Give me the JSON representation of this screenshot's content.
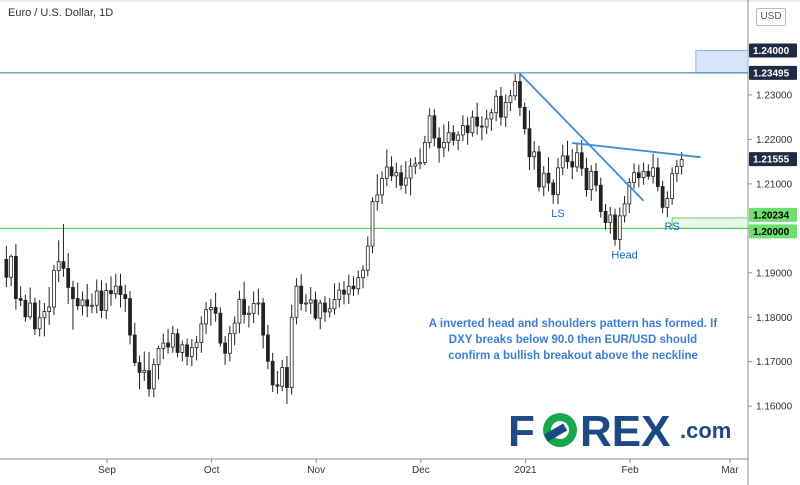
{
  "header": {
    "title": "Euro / U.S. Dollar, 1D",
    "currency": "USD"
  },
  "annotation": "A inverted head and shoulders pattern has formed. If DXY breaks below 90.0 then EUR/USD should confirm a bullish breakout above the neckline",
  "logo": {
    "text_left": "F",
    "text_right": "REX",
    "suffix": ".com",
    "color_blue": "#1d4a84",
    "color_green": "#19a84b"
  },
  "colors": {
    "candle": "#222222",
    "trend": "#3a8fd6",
    "resistance": "#2a7b90",
    "support": "#3fcf3f",
    "zone": "#d8e4fa"
  },
  "chart_data": {
    "type": "candlestick",
    "title": "Euro / U.S. Dollar, 1D",
    "ylim": [
      1.1497,
      1.2455
    ],
    "y_ticks": [
      "1.16000",
      "1.17000",
      "1.18000",
      "1.19000",
      "1.20000",
      "1.21000",
      "1.22000",
      "1.23000"
    ],
    "x_ticks": [
      "Sep",
      "Oct",
      "Nov",
      "Dec",
      "2021",
      "Feb",
      "Mar"
    ],
    "price_tags": [
      {
        "label": "1.24000",
        "value": 1.24,
        "style": "dark"
      },
      {
        "label": "1.23495",
        "value": 1.23495,
        "style": "dark"
      },
      {
        "label": "1.21555",
        "value": 1.21555,
        "style": "dark"
      },
      {
        "label": "1.20234",
        "value": 1.20234,
        "style": "green"
      },
      {
        "label": "1.20000",
        "value": 1.2,
        "style": "green"
      }
    ],
    "levels": [
      {
        "value": 1.23495,
        "kind": "resistance"
      },
      {
        "value": 1.2,
        "kind": "support"
      }
    ],
    "zones": [
      {
        "from": 1.23495,
        "to": 1.24,
        "start_index": 145
      },
      {
        "from": 1.2,
        "to": 1.20234,
        "start_index": 140
      }
    ],
    "trendlines": [
      {
        "from": {
          "index": 108,
          "value": 1.2348
        },
        "to": {
          "index": 134,
          "value": 1.2062
        }
      },
      {
        "from": {
          "index": 119,
          "value": 1.2192
        },
        "to": {
          "index": 146,
          "value": 1.216
        }
      }
    ],
    "pattern_labels": [
      {
        "text": "LS",
        "index": 116,
        "value": 1.2026
      },
      {
        "text": "Head",
        "index": 130,
        "value": 1.1932
      },
      {
        "text": "RS",
        "index": 140,
        "value": 1.1996
      }
    ],
    "candles": [
      [
        1.193,
        1.1961,
        1.1868,
        1.189
      ],
      [
        1.189,
        1.1941,
        1.187,
        1.1937
      ],
      [
        1.1937,
        1.1965,
        1.1817,
        1.1842
      ],
      [
        1.1842,
        1.187,
        1.1825,
        1.1838
      ],
      [
        1.1838,
        1.1851,
        1.179,
        1.1801
      ],
      [
        1.1801,
        1.1867,
        1.1795,
        1.1832
      ],
      [
        1.1832,
        1.1844,
        1.176,
        1.1774
      ],
      [
        1.1774,
        1.1839,
        1.1757,
        1.1799
      ],
      [
        1.1799,
        1.1832,
        1.1757,
        1.1813
      ],
      [
        1.1813,
        1.1868,
        1.1783,
        1.1823
      ],
      [
        1.1823,
        1.1918,
        1.1805,
        1.1905
      ],
      [
        1.1905,
        1.1973,
        1.1879,
        1.1925
      ],
      [
        1.1925,
        1.201,
        1.1891,
        1.191
      ],
      [
        1.191,
        1.1944,
        1.183,
        1.1867
      ],
      [
        1.1867,
        1.1882,
        1.1772,
        1.1842
      ],
      [
        1.1842,
        1.1878,
        1.1816,
        1.1826
      ],
      [
        1.1826,
        1.1858,
        1.1804,
        1.1839
      ],
      [
        1.1839,
        1.1875,
        1.18,
        1.1825
      ],
      [
        1.1825,
        1.1853,
        1.1809,
        1.1827
      ],
      [
        1.1827,
        1.1885,
        1.1809,
        1.1859
      ],
      [
        1.1859,
        1.1883,
        1.1798,
        1.1815
      ],
      [
        1.1815,
        1.1877,
        1.1796,
        1.186
      ],
      [
        1.186,
        1.1892,
        1.1826,
        1.1853
      ],
      [
        1.1853,
        1.1898,
        1.1842,
        1.187
      ],
      [
        1.187,
        1.1898,
        1.1822,
        1.1851
      ],
      [
        1.1851,
        1.1873,
        1.1812,
        1.1842
      ],
      [
        1.1842,
        1.1859,
        1.1739,
        1.176
      ],
      [
        1.176,
        1.1788,
        1.169,
        1.1698
      ],
      [
        1.1698,
        1.1714,
        1.1638,
        1.1676
      ],
      [
        1.1676,
        1.1723,
        1.1657,
        1.168
      ],
      [
        1.168,
        1.1722,
        1.1621,
        1.1639
      ],
      [
        1.1639,
        1.1707,
        1.162,
        1.1694
      ],
      [
        1.1694,
        1.1736,
        1.166,
        1.173
      ],
      [
        1.173,
        1.1763,
        1.1706,
        1.1742
      ],
      [
        1.1742,
        1.1774,
        1.1718,
        1.1733
      ],
      [
        1.1733,
        1.1781,
        1.172,
        1.1763
      ],
      [
        1.1763,
        1.1774,
        1.171,
        1.1721
      ],
      [
        1.1721,
        1.1748,
        1.1701,
        1.1738
      ],
      [
        1.1738,
        1.1752,
        1.1692,
        1.1712
      ],
      [
        1.1712,
        1.1751,
        1.169,
        1.1732
      ],
      [
        1.1732,
        1.1758,
        1.1703,
        1.1743
      ],
      [
        1.1743,
        1.1802,
        1.172,
        1.1785
      ],
      [
        1.1785,
        1.1834,
        1.1762,
        1.1817
      ],
      [
        1.1817,
        1.1841,
        1.1781,
        1.1822
      ],
      [
        1.1822,
        1.1855,
        1.179,
        1.1809
      ],
      [
        1.1809,
        1.1822,
        1.1734,
        1.1742
      ],
      [
        1.1742,
        1.1758,
        1.1693,
        1.1719
      ],
      [
        1.1719,
        1.1781,
        1.1701,
        1.1763
      ],
      [
        1.1763,
        1.1802,
        1.1737,
        1.1787
      ],
      [
        1.1787,
        1.186,
        1.1764,
        1.184
      ],
      [
        1.184,
        1.188,
        1.1786,
        1.1806
      ],
      [
        1.1806,
        1.1826,
        1.1777,
        1.1809
      ],
      [
        1.1809,
        1.1858,
        1.1787,
        1.1831
      ],
      [
        1.1831,
        1.1864,
        1.1805,
        1.1832
      ],
      [
        1.1832,
        1.1843,
        1.173,
        1.176
      ],
      [
        1.176,
        1.1783,
        1.1683,
        1.1701
      ],
      [
        1.1701,
        1.172,
        1.1632,
        1.1648
      ],
      [
        1.1648,
        1.1679,
        1.1628,
        1.1645
      ],
      [
        1.1645,
        1.1704,
        1.1634,
        1.1687
      ],
      [
        1.1687,
        1.1713,
        1.1605,
        1.1642
      ],
      [
        1.1642,
        1.1828,
        1.1626,
        1.18
      ],
      [
        1.18,
        1.1888,
        1.1784,
        1.187
      ],
      [
        1.187,
        1.1897,
        1.1815,
        1.1831
      ],
      [
        1.1831,
        1.1852,
        1.1812,
        1.1832
      ],
      [
        1.1832,
        1.1868,
        1.1807,
        1.1839
      ],
      [
        1.1839,
        1.1858,
        1.1793,
        1.1798
      ],
      [
        1.1798,
        1.1839,
        1.1773,
        1.1832
      ],
      [
        1.1832,
        1.1847,
        1.179,
        1.1812
      ],
      [
        1.1812,
        1.1843,
        1.1799,
        1.1819
      ],
      [
        1.1819,
        1.1876,
        1.1806,
        1.184
      ],
      [
        1.184,
        1.1878,
        1.1822,
        1.1861
      ],
      [
        1.1861,
        1.1881,
        1.1829,
        1.1852
      ],
      [
        1.1852,
        1.1896,
        1.183,
        1.187
      ],
      [
        1.187,
        1.1892,
        1.1848,
        1.1864
      ],
      [
        1.1864,
        1.1905,
        1.1851,
        1.1889
      ],
      [
        1.1889,
        1.1917,
        1.1865,
        1.1906
      ],
      [
        1.1906,
        1.1982,
        1.1892,
        1.196
      ],
      [
        1.196,
        1.207,
        1.1944,
        1.206
      ],
      [
        1.206,
        1.2122,
        1.204,
        1.2075
      ],
      [
        1.2075,
        1.2128,
        1.2055,
        1.2112
      ],
      [
        1.2112,
        1.2177,
        1.2095,
        1.2138
      ],
      [
        1.2138,
        1.2162,
        1.2106,
        1.2118
      ],
      [
        1.2118,
        1.2148,
        1.2091,
        1.2125
      ],
      [
        1.2125,
        1.2142,
        1.2087,
        1.2097
      ],
      [
        1.2097,
        1.2151,
        1.2078,
        1.2113
      ],
      [
        1.2113,
        1.2158,
        1.2074,
        1.214
      ],
      [
        1.214,
        1.216,
        1.2122,
        1.2145
      ],
      [
        1.2145,
        1.218,
        1.2133,
        1.2148
      ],
      [
        1.2148,
        1.2208,
        1.2142,
        1.2193
      ],
      [
        1.2193,
        1.227,
        1.218,
        1.2253
      ],
      [
        1.2253,
        1.2268,
        1.2184,
        1.2203
      ],
      [
        1.2203,
        1.2227,
        1.2148,
        1.2181
      ],
      [
        1.2181,
        1.2234,
        1.216,
        1.2193
      ],
      [
        1.2193,
        1.2241,
        1.2173,
        1.2215
      ],
      [
        1.2215,
        1.2232,
        1.2186,
        1.2198
      ],
      [
        1.2198,
        1.2218,
        1.2176,
        1.221
      ],
      [
        1.221,
        1.2254,
        1.2196,
        1.2231
      ],
      [
        1.2231,
        1.225,
        1.2188,
        1.2215
      ],
      [
        1.2215,
        1.2265,
        1.2206,
        1.225
      ],
      [
        1.225,
        1.2283,
        1.2211,
        1.223
      ],
      [
        1.223,
        1.2252,
        1.2198,
        1.2228
      ],
      [
        1.2228,
        1.2267,
        1.2212,
        1.2246
      ],
      [
        1.2246,
        1.2269,
        1.2219,
        1.226
      ],
      [
        1.226,
        1.2311,
        1.2241,
        1.2297
      ],
      [
        1.2297,
        1.2318,
        1.2231,
        1.225
      ],
      [
        1.225,
        1.2301,
        1.2228,
        1.2283
      ],
      [
        1.2283,
        1.2311,
        1.2264,
        1.2298
      ],
      [
        1.2298,
        1.2347,
        1.2288,
        1.233
      ],
      [
        1.233,
        1.2349,
        1.2252,
        1.2272
      ],
      [
        1.2272,
        1.2283,
        1.2211,
        1.2224
      ],
      [
        1.2224,
        1.2265,
        1.2131,
        1.2161
      ],
      [
        1.2161,
        1.2196,
        1.2132,
        1.2172
      ],
      [
        1.2172,
        1.2186,
        1.2083,
        1.2093
      ],
      [
        1.2093,
        1.214,
        1.2072,
        1.2124
      ],
      [
        1.2124,
        1.216,
        1.2083,
        1.2102
      ],
      [
        1.2102,
        1.211,
        1.2055,
        1.2076
      ],
      [
        1.2076,
        1.2158,
        1.2054,
        1.2136
      ],
      [
        1.2136,
        1.2188,
        1.212,
        1.2163
      ],
      [
        1.2163,
        1.2197,
        1.2134,
        1.215
      ],
      [
        1.215,
        1.2178,
        1.2111,
        1.2138
      ],
      [
        1.2138,
        1.2189,
        1.2127,
        1.217
      ],
      [
        1.217,
        1.2199,
        1.2118,
        1.2135
      ],
      [
        1.2135,
        1.2159,
        1.2071,
        1.2087
      ],
      [
        1.2087,
        1.2142,
        1.2062,
        1.2128
      ],
      [
        1.2128,
        1.2147,
        1.2083,
        1.2097
      ],
      [
        1.2097,
        1.2114,
        1.2024,
        1.2038
      ],
      [
        1.2038,
        1.2055,
        1.1997,
        1.2013
      ],
      [
        1.2013,
        1.2048,
        1.1988,
        1.203
      ],
      [
        1.203,
        1.2044,
        1.1961,
        1.1975
      ],
      [
        1.1975,
        1.2047,
        1.1951,
        1.2028
      ],
      [
        1.2028,
        1.2073,
        1.2013,
        1.2055
      ],
      [
        1.2055,
        1.2113,
        1.2034,
        1.2103
      ],
      [
        1.2103,
        1.2146,
        1.2089,
        1.2125
      ],
      [
        1.2125,
        1.2143,
        1.2092,
        1.2114
      ],
      [
        1.2114,
        1.2148,
        1.2098,
        1.2128
      ],
      [
        1.2128,
        1.2144,
        1.211,
        1.2117
      ],
      [
        1.2117,
        1.2168,
        1.2101,
        1.2136
      ],
      [
        1.2136,
        1.2159,
        1.2083,
        1.2094
      ],
      [
        1.2094,
        1.2107,
        1.2034,
        1.2047
      ],
      [
        1.2047,
        1.2083,
        1.2025,
        1.2067
      ],
      [
        1.2067,
        1.2137,
        1.2053,
        1.2123
      ],
      [
        1.2123,
        1.2154,
        1.2104,
        1.2139
      ],
      [
        1.2139,
        1.2172,
        1.2121,
        1.2155
      ]
    ]
  }
}
